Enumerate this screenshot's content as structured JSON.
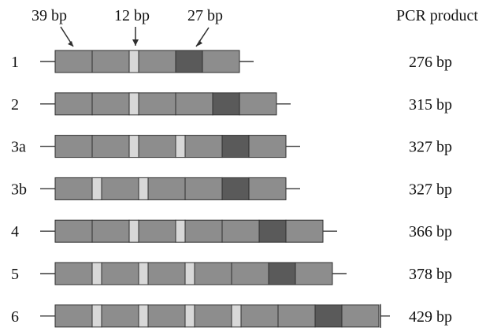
{
  "header": {
    "annotations": [
      {
        "text": "39 bp"
      },
      {
        "text": "12 bp"
      },
      {
        "text": "27 bp"
      }
    ],
    "product_heading": "PCR product"
  },
  "rows": [
    {
      "label": "1",
      "size": "276 bp",
      "segments": [
        "M",
        "M",
        "L",
        "M",
        "D",
        "M"
      ]
    },
    {
      "label": "2",
      "size": "315 bp",
      "segments": [
        "M",
        "M",
        "L",
        "M",
        "M",
        "D",
        "M"
      ]
    },
    {
      "label": "3a",
      "size": "327 bp",
      "segments": [
        "M",
        "M",
        "L",
        "M",
        "L",
        "M",
        "D",
        "M"
      ]
    },
    {
      "label": "3b",
      "size": "327 bp",
      "segments": [
        "M",
        "L",
        "M",
        "L",
        "M",
        "M",
        "D",
        "M"
      ]
    },
    {
      "label": "4",
      "size": "366 bp",
      "segments": [
        "M",
        "M",
        "L",
        "M",
        "L",
        "M",
        "M",
        "D",
        "M"
      ]
    },
    {
      "label": "5",
      "size": "378 bp",
      "segments": [
        "M",
        "L",
        "M",
        "L",
        "M",
        "L",
        "M",
        "M",
        "D",
        "M"
      ]
    },
    {
      "label": "6",
      "size": "429 bp",
      "segments": [
        "M",
        "L",
        "M",
        "L",
        "M",
        "L",
        "M",
        "L",
        "M",
        "M",
        "D",
        "M"
      ]
    }
  ],
  "colors": {
    "medium_segment": "#8d8d8d",
    "light_segment": "#d8d8d8",
    "dark_segment": "#5a5a5a",
    "outline": "#2f2f2f",
    "line": "#3a3a3a",
    "text": "#111111"
  }
}
